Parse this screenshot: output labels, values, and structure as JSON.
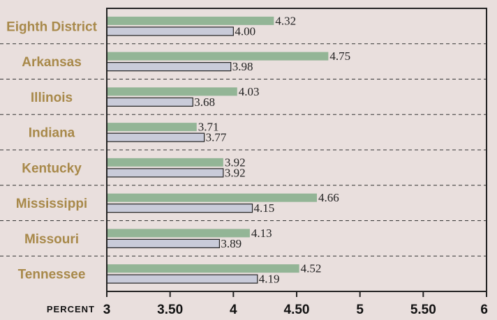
{
  "chart_data": {
    "type": "bar",
    "orientation": "horizontal",
    "categories": [
      "Eighth District",
      "Arkansas",
      "Illinois",
      "Indiana",
      "Kentucky",
      "Mississippi",
      "Missouri",
      "Tennessee"
    ],
    "series": [
      {
        "values": [
          4.32,
          4.75,
          4.03,
          3.71,
          3.92,
          4.66,
          4.13,
          4.52
        ]
      },
      {
        "values": [
          4.0,
          3.98,
          3.68,
          3.77,
          3.92,
          4.15,
          3.89,
          4.19
        ]
      }
    ],
    "value_labels": [
      [
        "4.32",
        "4.75",
        "4.03",
        "3.71",
        "3.92",
        "4.66",
        "4.13",
        "4.52"
      ],
      [
        "4.00",
        "3.98",
        "3.68",
        "3.77",
        "3.92",
        "4.15",
        "3.89",
        "4.19"
      ]
    ],
    "xlim": [
      3,
      6
    ],
    "x_ticks": [
      3,
      3.5,
      4,
      4.5,
      5,
      5.5,
      6
    ],
    "x_tick_labels": [
      "3",
      "3.50",
      "4",
      "4.50",
      "5",
      "5.50",
      "6"
    ],
    "x_unit_label": "PERCENT",
    "grid": "dashed separators between categories",
    "colors": {
      "series_1": "#93b596",
      "series_2": "#c9cbd9",
      "category_label": "#a8894a",
      "background": "#e9dfdd",
      "axis": "#222222"
    }
  }
}
